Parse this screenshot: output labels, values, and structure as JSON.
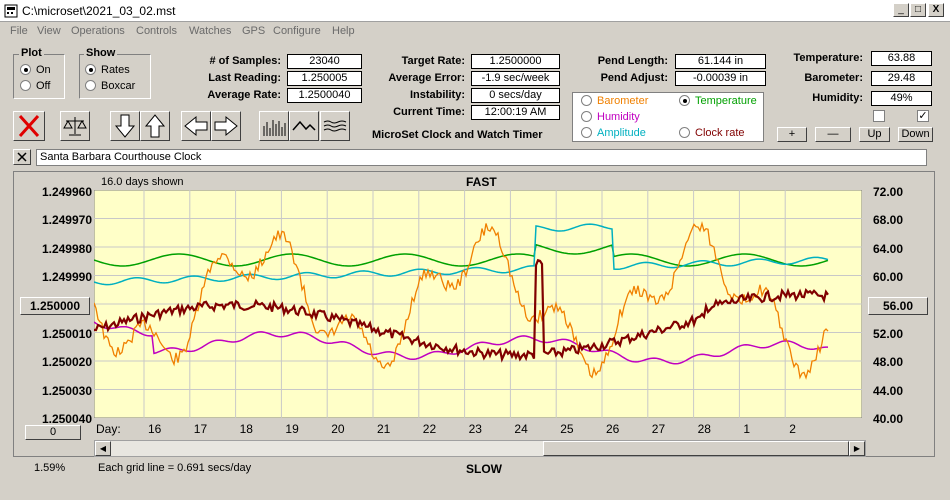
{
  "window": {
    "title": "C:\\microset\\2021_03_02.mst",
    "min": "_",
    "max": "□",
    "close": "X"
  },
  "menu": [
    "File",
    "View",
    "Operations",
    "Controls",
    "Watches",
    "GPS",
    "Configure",
    "Help"
  ],
  "plot_group": {
    "label": "Plot",
    "on": "On",
    "off": "Off",
    "selected": "On"
  },
  "show_group": {
    "label": "Show",
    "rates": "Rates",
    "boxcar": "Boxcar",
    "selected": "Rates"
  },
  "stats": {
    "samples_label": "# of Samples:",
    "samples": "23040",
    "last_label": "Last Reading:",
    "last": "1.250005",
    "avg_label": "Average Rate:",
    "avg": "1.2500040",
    "target_label": "Target Rate:",
    "target": "1.2500000",
    "avgerr_label": "Average Error:",
    "avgerr": "-1.9 sec/week",
    "instab_label": "Instability:",
    "instab": "0 secs/day",
    "time_label": "Current Time:",
    "time": "12:00:19 AM",
    "pendlen_label": "Pend Length:",
    "pendlen": "61.144 in",
    "pendadj_label": "Pend Adjust:",
    "pendadj": "-0.00039 in",
    "temp_label": "Temperature:",
    "temp": "63.88",
    "baro_label": "Barometer:",
    "baro": "29.48",
    "hum_label": "Humidity:",
    "hum": "49%"
  },
  "app_name": "MicroSet Clock and Watch Timer",
  "legend": {
    "barometer": "Barometer",
    "temperature": "Temperature",
    "humidity": "Humidity",
    "amplitude": "Amplitude",
    "clockrate": "Clock rate",
    "colors": {
      "barometer": "#f08000",
      "temperature": "#00a000",
      "humidity": "#c000c0",
      "amplitude": "#00b0c0",
      "clockrate": "#800000"
    }
  },
  "small_buttons": {
    "plus": "+",
    "minus": "—",
    "up": "Up",
    "down": "Down"
  },
  "clock_name": "Santa Barbara Courthouse Clock",
  "chart": {
    "top_left": "16.0 days shown",
    "top": "FAST",
    "bottom": "SLOW",
    "left_labels": [
      "1.249960",
      "1.249970",
      "1.249980",
      "1.249990",
      "1.250000",
      "1.250010",
      "1.250020",
      "1.250030",
      "1.250040"
    ],
    "right_labels": [
      "72.00",
      "68.00",
      "64.00",
      "60.00",
      "56.00",
      "52.00",
      "48.00",
      "44.00",
      "40.00"
    ],
    "center_left": "1.250000",
    "center_right": "56.00",
    "day_label": "Day:",
    "days": [
      "16",
      "17",
      "18",
      "19",
      "20",
      "21",
      "22",
      "23",
      "24",
      "25",
      "26",
      "27",
      "28",
      "1",
      "2"
    ],
    "zero_button": "0"
  },
  "footer": {
    "percent": "1.59%",
    "grid": "Each grid line = 0.691 secs/day"
  }
}
